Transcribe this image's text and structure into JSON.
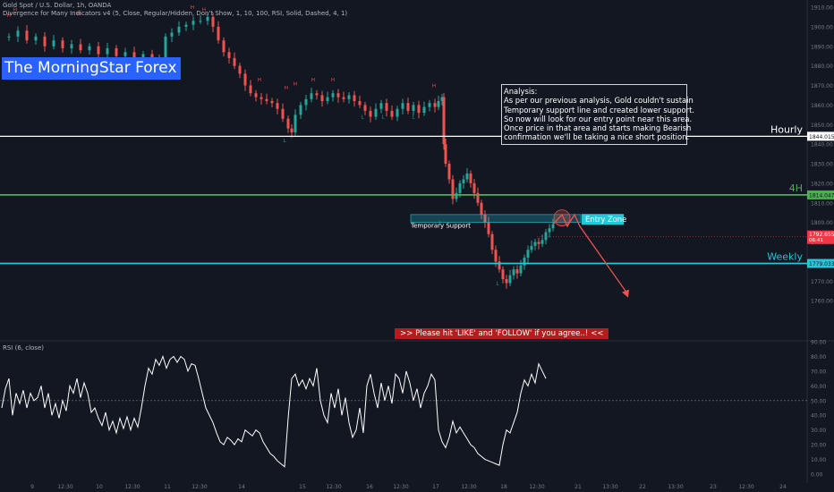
{
  "header": {
    "symbol_line": "Gold Spot / U.S. Dollar, 1h, OANDA",
    "indicator_line": "Divergence for Many Indicators v4 (5, Close, Regular/Hidden, Don't Show, 1, 10, 100, RSI, Solid, Dashed, 4, 1)"
  },
  "brand": {
    "text": "The MorningStar Forex",
    "color": "#2962ff"
  },
  "analysis": {
    "lines": [
      "Analysis:",
      "As per our previous analysis, Gold couldn't sustain",
      "Temporary support line and created lower support.",
      "So now will look for our entry point near this area.",
      "Once price in that area and starts making Bearish",
      "confirmation we'll be taking a nice short position."
    ]
  },
  "cta": {
    "text": ">>    Please hit 'LIKE' and 'FOLLOW' if you agree..!   <<"
  },
  "rsi_panel": {
    "title": "RSI (6, close)"
  },
  "chart_data": [
    {
      "type": "candlestick",
      "title": "Gold Spot / U.S. Dollar, 1h, OANDA",
      "ylim": [
        1750,
        1910
      ],
      "y_ticks": [
        1760,
        1770,
        1780,
        1790,
        1800,
        1810,
        1820,
        1830,
        1840,
        1850,
        1860,
        1870,
        1880,
        1890,
        1900,
        1910
      ],
      "y_tick_labels": [
        "1760.00",
        "1770.00",
        "1780.00",
        "1790.00",
        "1800.00",
        "1810.00",
        "1820.00",
        "1830.00",
        "1840.00",
        "1850.00",
        "1860.00",
        "1870.00",
        "1880.00",
        "1890.00",
        "1900.00",
        "1910.00"
      ],
      "x_tick_labels": [
        "9",
        "12:30",
        "10",
        "12:30",
        "11",
        "12:30",
        "14",
        "15",
        "12:30",
        "16",
        "12:30",
        "17",
        "12:30",
        "18",
        "12:30",
        "21",
        "13:30",
        "22",
        "13:30",
        "23",
        "12:30",
        "24"
      ],
      "close_path": [
        [
          0,
          1895
        ],
        [
          10,
          1898
        ],
        [
          20,
          1893
        ],
        [
          30,
          1895
        ],
        [
          40,
          1890
        ],
        [
          50,
          1893
        ],
        [
          60,
          1889
        ],
        [
          70,
          1891
        ],
        [
          80,
          1888
        ],
        [
          90,
          1890
        ],
        [
          100,
          1886
        ],
        [
          110,
          1889
        ],
        [
          120,
          1885
        ],
        [
          130,
          1887
        ],
        [
          140,
          1884
        ],
        [
          150,
          1886
        ],
        [
          160,
          1883
        ],
        [
          168,
          1882
        ],
        [
          175,
          1895
        ],
        [
          182,
          1897
        ],
        [
          190,
          1900
        ],
        [
          198,
          1901
        ],
        [
          206,
          1903
        ],
        [
          214,
          1903
        ],
        [
          222,
          1905
        ],
        [
          228,
          1900
        ],
        [
          234,
          1893
        ],
        [
          240,
          1887
        ],
        [
          246,
          1884
        ],
        [
          252,
          1880
        ],
        [
          258,
          1876
        ],
        [
          264,
          1870
        ],
        [
          270,
          1866
        ],
        [
          276,
          1864
        ],
        [
          282,
          1863
        ],
        [
          288,
          1862
        ],
        [
          294,
          1861
        ],
        [
          300,
          1858
        ],
        [
          306,
          1853
        ],
        [
          312,
          1848
        ],
        [
          316,
          1846
        ],
        [
          320,
          1855
        ],
        [
          326,
          1860
        ],
        [
          332,
          1863
        ],
        [
          338,
          1866
        ],
        [
          344,
          1865
        ],
        [
          350,
          1862
        ],
        [
          356,
          1864
        ],
        [
          362,
          1866
        ],
        [
          368,
          1864
        ],
        [
          374,
          1863
        ],
        [
          380,
          1865
        ],
        [
          386,
          1862
        ],
        [
          392,
          1860
        ],
        [
          398,
          1857
        ],
        [
          404,
          1854
        ],
        [
          410,
          1858
        ],
        [
          416,
          1861
        ],
        [
          422,
          1857
        ],
        [
          428,
          1854
        ],
        [
          434,
          1858
        ],
        [
          440,
          1861
        ],
        [
          446,
          1857
        ],
        [
          452,
          1860
        ],
        [
          458,
          1856
        ],
        [
          464,
          1859
        ],
        [
          470,
          1861
        ],
        [
          476,
          1859
        ],
        [
          480,
          1862
        ],
        [
          484,
          1864
        ],
        [
          486,
          1840
        ],
        [
          488,
          1830
        ],
        [
          492,
          1822
        ],
        [
          496,
          1812
        ],
        [
          500,
          1815
        ],
        [
          504,
          1820
        ],
        [
          508,
          1822
        ],
        [
          512,
          1825
        ],
        [
          516,
          1820
        ],
        [
          520,
          1815
        ],
        [
          524,
          1810
        ],
        [
          528,
          1804
        ],
        [
          532,
          1800
        ],
        [
          536,
          1794
        ],
        [
          540,
          1786
        ],
        [
          544,
          1780
        ],
        [
          548,
          1776
        ],
        [
          552,
          1771
        ],
        [
          556,
          1769
        ],
        [
          560,
          1773
        ],
        [
          564,
          1776
        ],
        [
          568,
          1774
        ],
        [
          572,
          1778
        ],
        [
          576,
          1782
        ],
        [
          580,
          1786
        ],
        [
          584,
          1788
        ],
        [
          588,
          1790
        ],
        [
          592,
          1789
        ],
        [
          596,
          1791
        ],
        [
          600,
          1795
        ],
        [
          604,
          1797
        ],
        [
          608,
          1799
        ]
      ],
      "annotations": [
        {
          "type": "hline",
          "y": 1844.015,
          "label": "Hourly",
          "price_label": "1844.015",
          "color": "#ffffff"
        },
        {
          "type": "hline",
          "y": 1814.047,
          "label": "4H",
          "price_label": "1814.047",
          "color": "#4caf50"
        },
        {
          "type": "hline",
          "y": 1779.033,
          "label": "Weekly",
          "price_label": "1779.033",
          "color": "#26c6da"
        },
        {
          "type": "zone",
          "y": [
            1800,
            1804
          ],
          "label": "Temporary Support"
        },
        {
          "type": "zone",
          "y": [
            1798,
            1803
          ],
          "label": "Entry Zone"
        },
        {
          "type": "price_marker",
          "y": 1792.655,
          "label": "1792.655",
          "sublabel": "06:41",
          "color": "#f23645"
        },
        {
          "type": "projection",
          "points": [
            [
              608,
              1799
            ],
            [
              618,
              1804
            ],
            [
              624,
              1798
            ],
            [
              632,
              1804
            ],
            [
              638,
              1798
            ],
            [
              692,
              1763
            ]
          ]
        }
      ],
      "pivot_markers": [
        "H",
        "L"
      ]
    },
    {
      "type": "line",
      "title": "RSI (6, close)",
      "ylim": [
        0,
        90
      ],
      "y_ticks": [
        0,
        10,
        20,
        30,
        40,
        50,
        60,
        70,
        80,
        90
      ],
      "y_tick_labels": [
        "0.00",
        "10.00",
        "20.00",
        "30.00",
        "40.00",
        "50.00",
        "60.00",
        "70.00",
        "80.00",
        "90.00"
      ],
      "midline": 50,
      "values": [
        [
          0,
          45
        ],
        [
          4,
          58
        ],
        [
          8,
          65
        ],
        [
          12,
          40
        ],
        [
          16,
          55
        ],
        [
          20,
          48
        ],
        [
          24,
          57
        ],
        [
          28,
          45
        ],
        [
          32,
          55
        ],
        [
          36,
          50
        ],
        [
          40,
          52
        ],
        [
          44,
          60
        ],
        [
          48,
          45
        ],
        [
          52,
          55
        ],
        [
          56,
          40
        ],
        [
          60,
          48
        ],
        [
          64,
          38
        ],
        [
          68,
          50
        ],
        [
          72,
          43
        ],
        [
          76,
          60
        ],
        [
          80,
          55
        ],
        [
          84,
          65
        ],
        [
          88,
          52
        ],
        [
          92,
          62
        ],
        [
          96,
          55
        ],
        [
          100,
          42
        ],
        [
          104,
          45
        ],
        [
          108,
          38
        ],
        [
          112,
          33
        ],
        [
          116,
          42
        ],
        [
          120,
          30
        ],
        [
          124,
          36
        ],
        [
          128,
          28
        ],
        [
          132,
          38
        ],
        [
          136,
          31
        ],
        [
          140,
          39
        ],
        [
          144,
          30
        ],
        [
          148,
          38
        ],
        [
          152,
          32
        ],
        [
          156,
          45
        ],
        [
          160,
          60
        ],
        [
          164,
          72
        ],
        [
          168,
          68
        ],
        [
          172,
          78
        ],
        [
          176,
          74
        ],
        [
          180,
          80
        ],
        [
          184,
          72
        ],
        [
          188,
          78
        ],
        [
          192,
          80
        ],
        [
          196,
          76
        ],
        [
          200,
          80
        ],
        [
          204,
          78
        ],
        [
          208,
          70
        ],
        [
          212,
          75
        ],
        [
          216,
          74
        ],
        [
          220,
          65
        ],
        [
          224,
          55
        ],
        [
          228,
          45
        ],
        [
          232,
          40
        ],
        [
          236,
          35
        ],
        [
          240,
          28
        ],
        [
          244,
          22
        ],
        [
          248,
          20
        ],
        [
          252,
          25
        ],
        [
          256,
          23
        ],
        [
          260,
          20
        ],
        [
          264,
          24
        ],
        [
          268,
          22
        ],
        [
          272,
          30
        ],
        [
          276,
          28
        ],
        [
          280,
          26
        ],
        [
          284,
          30
        ],
        [
          288,
          28
        ],
        [
          292,
          22
        ],
        [
          296,
          18
        ],
        [
          300,
          14
        ],
        [
          304,
          12
        ],
        [
          308,
          9
        ],
        [
          312,
          7
        ],
        [
          316,
          5
        ],
        [
          320,
          38
        ],
        [
          324,
          65
        ],
        [
          328,
          68
        ],
        [
          332,
          60
        ],
        [
          336,
          64
        ],
        [
          340,
          58
        ],
        [
          344,
          65
        ],
        [
          348,
          60
        ],
        [
          352,
          72
        ],
        [
          356,
          50
        ],
        [
          360,
          40
        ],
        [
          364,
          35
        ],
        [
          368,
          55
        ],
        [
          372,
          45
        ],
        [
          376,
          58
        ],
        [
          380,
          40
        ],
        [
          384,
          52
        ],
        [
          388,
          35
        ],
        [
          392,
          25
        ],
        [
          396,
          30
        ],
        [
          400,
          45
        ],
        [
          404,
          28
        ],
        [
          408,
          60
        ],
        [
          412,
          68
        ],
        [
          416,
          55
        ],
        [
          420,
          45
        ],
        [
          424,
          62
        ],
        [
          428,
          50
        ],
        [
          432,
          60
        ],
        [
          436,
          48
        ],
        [
          440,
          68
        ],
        [
          444,
          65
        ],
        [
          448,
          55
        ],
        [
          452,
          70
        ],
        [
          456,
          62
        ],
        [
          460,
          50
        ],
        [
          464,
          58
        ],
        [
          468,
          45
        ],
        [
          472,
          55
        ],
        [
          476,
          60
        ],
        [
          480,
          68
        ],
        [
          484,
          64
        ],
        [
          488,
          30
        ],
        [
          492,
          22
        ],
        [
          496,
          18
        ],
        [
          500,
          25
        ],
        [
          504,
          36
        ],
        [
          508,
          28
        ],
        [
          512,
          32
        ],
        [
          516,
          28
        ],
        [
          520,
          24
        ],
        [
          524,
          20
        ],
        [
          528,
          18
        ],
        [
          532,
          14
        ],
        [
          536,
          12
        ],
        [
          540,
          10
        ],
        [
          544,
          9
        ],
        [
          548,
          8
        ],
        [
          552,
          7
        ],
        [
          556,
          6
        ],
        [
          560,
          20
        ],
        [
          564,
          30
        ],
        [
          568,
          28
        ],
        [
          572,
          35
        ],
        [
          576,
          42
        ],
        [
          580,
          55
        ],
        [
          584,
          64
        ],
        [
          588,
          60
        ],
        [
          592,
          68
        ],
        [
          596,
          62
        ],
        [
          600,
          75
        ],
        [
          604,
          70
        ],
        [
          608,
          65
        ]
      ]
    }
  ]
}
